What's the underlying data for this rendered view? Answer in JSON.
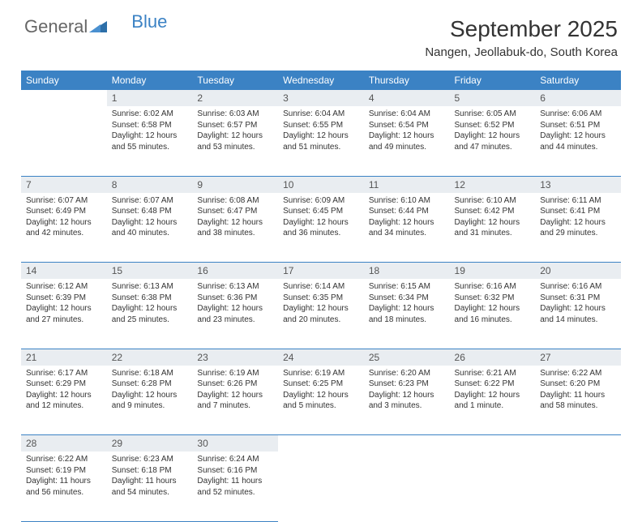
{
  "logo": {
    "text1": "General",
    "text2": "Blue"
  },
  "title": "September 2025",
  "location": "Nangen, Jeollabuk-do, South Korea",
  "colors": {
    "header_bg": "#3b82c4",
    "header_text": "#ffffff",
    "daynum_bg": "#e9edf1",
    "daynum_text": "#555555",
    "cell_text": "#333333",
    "rule": "#3b82c4",
    "page_bg": "#ffffff"
  },
  "typography": {
    "month_fontsize": 28,
    "location_fontsize": 15,
    "weekday_fontsize": 12,
    "daynum_fontsize": 12,
    "cell_fontsize": 10
  },
  "weekdays": [
    "Sunday",
    "Monday",
    "Tuesday",
    "Wednesday",
    "Thursday",
    "Friday",
    "Saturday"
  ],
  "weeks": [
    {
      "nums": [
        "",
        "1",
        "2",
        "3",
        "4",
        "5",
        "6"
      ],
      "cells": [
        null,
        {
          "sunrise": "Sunrise: 6:02 AM",
          "sunset": "Sunset: 6:58 PM",
          "day1": "Daylight: 12 hours",
          "day2": "and 55 minutes."
        },
        {
          "sunrise": "Sunrise: 6:03 AM",
          "sunset": "Sunset: 6:57 PM",
          "day1": "Daylight: 12 hours",
          "day2": "and 53 minutes."
        },
        {
          "sunrise": "Sunrise: 6:04 AM",
          "sunset": "Sunset: 6:55 PM",
          "day1": "Daylight: 12 hours",
          "day2": "and 51 minutes."
        },
        {
          "sunrise": "Sunrise: 6:04 AM",
          "sunset": "Sunset: 6:54 PM",
          "day1": "Daylight: 12 hours",
          "day2": "and 49 minutes."
        },
        {
          "sunrise": "Sunrise: 6:05 AM",
          "sunset": "Sunset: 6:52 PM",
          "day1": "Daylight: 12 hours",
          "day2": "and 47 minutes."
        },
        {
          "sunrise": "Sunrise: 6:06 AM",
          "sunset": "Sunset: 6:51 PM",
          "day1": "Daylight: 12 hours",
          "day2": "and 44 minutes."
        }
      ]
    },
    {
      "nums": [
        "7",
        "8",
        "9",
        "10",
        "11",
        "12",
        "13"
      ],
      "cells": [
        {
          "sunrise": "Sunrise: 6:07 AM",
          "sunset": "Sunset: 6:49 PM",
          "day1": "Daylight: 12 hours",
          "day2": "and 42 minutes."
        },
        {
          "sunrise": "Sunrise: 6:07 AM",
          "sunset": "Sunset: 6:48 PM",
          "day1": "Daylight: 12 hours",
          "day2": "and 40 minutes."
        },
        {
          "sunrise": "Sunrise: 6:08 AM",
          "sunset": "Sunset: 6:47 PM",
          "day1": "Daylight: 12 hours",
          "day2": "and 38 minutes."
        },
        {
          "sunrise": "Sunrise: 6:09 AM",
          "sunset": "Sunset: 6:45 PM",
          "day1": "Daylight: 12 hours",
          "day2": "and 36 minutes."
        },
        {
          "sunrise": "Sunrise: 6:10 AM",
          "sunset": "Sunset: 6:44 PM",
          "day1": "Daylight: 12 hours",
          "day2": "and 34 minutes."
        },
        {
          "sunrise": "Sunrise: 6:10 AM",
          "sunset": "Sunset: 6:42 PM",
          "day1": "Daylight: 12 hours",
          "day2": "and 31 minutes."
        },
        {
          "sunrise": "Sunrise: 6:11 AM",
          "sunset": "Sunset: 6:41 PM",
          "day1": "Daylight: 12 hours",
          "day2": "and 29 minutes."
        }
      ]
    },
    {
      "nums": [
        "14",
        "15",
        "16",
        "17",
        "18",
        "19",
        "20"
      ],
      "cells": [
        {
          "sunrise": "Sunrise: 6:12 AM",
          "sunset": "Sunset: 6:39 PM",
          "day1": "Daylight: 12 hours",
          "day2": "and 27 minutes."
        },
        {
          "sunrise": "Sunrise: 6:13 AM",
          "sunset": "Sunset: 6:38 PM",
          "day1": "Daylight: 12 hours",
          "day2": "and 25 minutes."
        },
        {
          "sunrise": "Sunrise: 6:13 AM",
          "sunset": "Sunset: 6:36 PM",
          "day1": "Daylight: 12 hours",
          "day2": "and 23 minutes."
        },
        {
          "sunrise": "Sunrise: 6:14 AM",
          "sunset": "Sunset: 6:35 PM",
          "day1": "Daylight: 12 hours",
          "day2": "and 20 minutes."
        },
        {
          "sunrise": "Sunrise: 6:15 AM",
          "sunset": "Sunset: 6:34 PM",
          "day1": "Daylight: 12 hours",
          "day2": "and 18 minutes."
        },
        {
          "sunrise": "Sunrise: 6:16 AM",
          "sunset": "Sunset: 6:32 PM",
          "day1": "Daylight: 12 hours",
          "day2": "and 16 minutes."
        },
        {
          "sunrise": "Sunrise: 6:16 AM",
          "sunset": "Sunset: 6:31 PM",
          "day1": "Daylight: 12 hours",
          "day2": "and 14 minutes."
        }
      ]
    },
    {
      "nums": [
        "21",
        "22",
        "23",
        "24",
        "25",
        "26",
        "27"
      ],
      "cells": [
        {
          "sunrise": "Sunrise: 6:17 AM",
          "sunset": "Sunset: 6:29 PM",
          "day1": "Daylight: 12 hours",
          "day2": "and 12 minutes."
        },
        {
          "sunrise": "Sunrise: 6:18 AM",
          "sunset": "Sunset: 6:28 PM",
          "day1": "Daylight: 12 hours",
          "day2": "and 9 minutes."
        },
        {
          "sunrise": "Sunrise: 6:19 AM",
          "sunset": "Sunset: 6:26 PM",
          "day1": "Daylight: 12 hours",
          "day2": "and 7 minutes."
        },
        {
          "sunrise": "Sunrise: 6:19 AM",
          "sunset": "Sunset: 6:25 PM",
          "day1": "Daylight: 12 hours",
          "day2": "and 5 minutes."
        },
        {
          "sunrise": "Sunrise: 6:20 AM",
          "sunset": "Sunset: 6:23 PM",
          "day1": "Daylight: 12 hours",
          "day2": "and 3 minutes."
        },
        {
          "sunrise": "Sunrise: 6:21 AM",
          "sunset": "Sunset: 6:22 PM",
          "day1": "Daylight: 12 hours",
          "day2": "and 1 minute."
        },
        {
          "sunrise": "Sunrise: 6:22 AM",
          "sunset": "Sunset: 6:20 PM",
          "day1": "Daylight: 11 hours",
          "day2": "and 58 minutes."
        }
      ]
    },
    {
      "nums": [
        "28",
        "29",
        "30",
        "",
        "",
        "",
        ""
      ],
      "cells": [
        {
          "sunrise": "Sunrise: 6:22 AM",
          "sunset": "Sunset: 6:19 PM",
          "day1": "Daylight: 11 hours",
          "day2": "and 56 minutes."
        },
        {
          "sunrise": "Sunrise: 6:23 AM",
          "sunset": "Sunset: 6:18 PM",
          "day1": "Daylight: 11 hours",
          "day2": "and 54 minutes."
        },
        {
          "sunrise": "Sunrise: 6:24 AM",
          "sunset": "Sunset: 6:16 PM",
          "day1": "Daylight: 11 hours",
          "day2": "and 52 minutes."
        },
        null,
        null,
        null,
        null
      ]
    }
  ]
}
